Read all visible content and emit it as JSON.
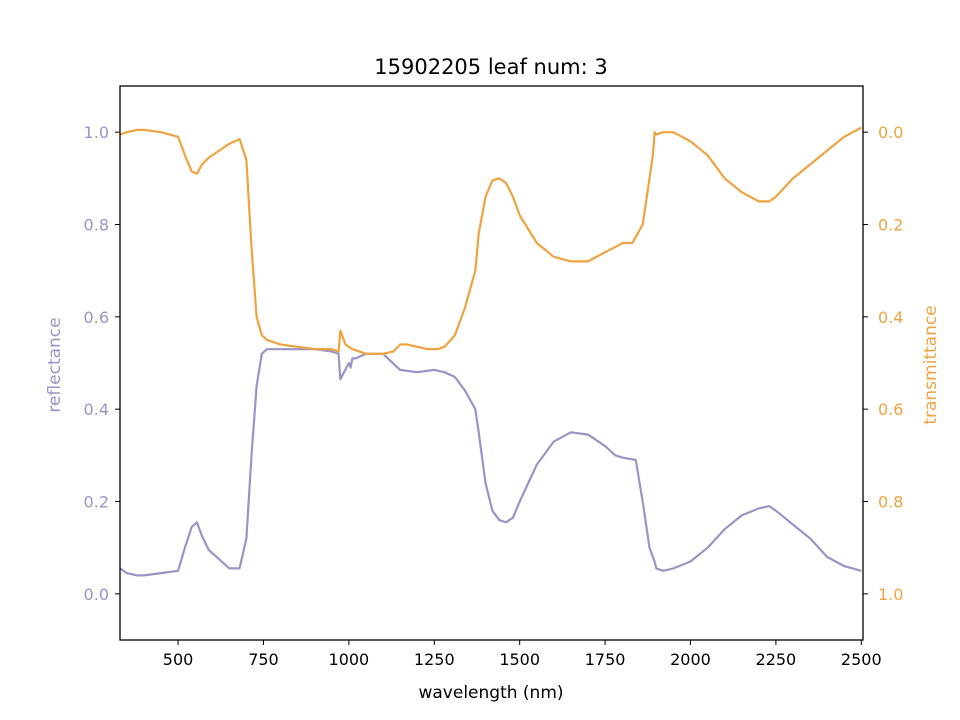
{
  "chart_data": {
    "type": "line",
    "title": "15902205 leaf num: 3",
    "xlabel": "wavelength (nm)",
    "ylabel": "reflectance",
    "y2label": "transmittance",
    "xlim": [
      330,
      2505
    ],
    "ylim": [
      -0.1,
      1.1
    ],
    "y2lim": [
      1.1,
      -0.1
    ],
    "y2_inverted": true,
    "xticks": [
      500,
      750,
      1000,
      1250,
      1500,
      1750,
      2000,
      2250,
      2500
    ],
    "xtick_labels": [
      "500",
      "750",
      "1000",
      "1250",
      "1500",
      "1750",
      "2000",
      "2250",
      "2500"
    ],
    "yticks": [
      0.0,
      0.2,
      0.4,
      0.6,
      0.8,
      1.0
    ],
    "ytick_labels": [
      "0.0",
      "0.2",
      "0.4",
      "0.6",
      "0.8",
      "1.0"
    ],
    "y2ticks": [
      0.0,
      0.2,
      0.4,
      0.6,
      0.8,
      1.0
    ],
    "y2tick_labels": [
      "0.0",
      "0.2",
      "0.4",
      "0.6",
      "0.8",
      "1.0"
    ],
    "grid": false,
    "colors": {
      "reflectance": "#9a94c4",
      "transmittance": "#eea340"
    },
    "series": [
      {
        "axis": "left",
        "x": [
          330,
          350,
          380,
          400,
          450,
          500,
          520,
          540,
          555,
          570,
          590,
          620,
          650,
          680,
          700,
          715,
          730,
          745,
          760,
          800,
          850,
          900,
          950,
          970,
          975,
          1000,
          1005,
          1010,
          1020,
          1050,
          1100,
          1150,
          1200,
          1250,
          1280,
          1310,
          1340,
          1370,
          1380,
          1400,
          1420,
          1440,
          1460,
          1480,
          1500,
          1550,
          1600,
          1650,
          1700,
          1750,
          1780,
          1800,
          1840,
          1860,
          1880,
          1890,
          1895,
          1900,
          1920,
          1950,
          2000,
          2050,
          2100,
          2150,
          2200,
          2230,
          2250,
          2300,
          2350,
          2400,
          2450,
          2500
        ],
        "y": [
          0.055,
          0.045,
          0.04,
          0.04,
          0.045,
          0.05,
          0.1,
          0.145,
          0.155,
          0.125,
          0.095,
          0.075,
          0.055,
          0.055,
          0.12,
          0.3,
          0.45,
          0.52,
          0.53,
          0.53,
          0.53,
          0.53,
          0.525,
          0.52,
          0.465,
          0.5,
          0.49,
          0.51,
          0.51,
          0.52,
          0.52,
          0.485,
          0.48,
          0.485,
          0.48,
          0.47,
          0.44,
          0.4,
          0.35,
          0.24,
          0.18,
          0.16,
          0.155,
          0.165,
          0.2,
          0.28,
          0.33,
          0.35,
          0.345,
          0.32,
          0.3,
          0.295,
          0.29,
          0.2,
          0.1,
          0.08,
          0.07,
          0.055,
          0.05,
          0.055,
          0.07,
          0.1,
          0.14,
          0.17,
          0.185,
          0.19,
          0.18,
          0.15,
          0.12,
          0.08,
          0.06,
          0.05
        ]
      },
      {
        "axis": "right",
        "x": [
          330,
          350,
          380,
          400,
          450,
          500,
          520,
          540,
          555,
          570,
          590,
          620,
          650,
          680,
          700,
          715,
          730,
          745,
          760,
          800,
          850,
          900,
          950,
          970,
          975,
          990,
          1000,
          1010,
          1050,
          1100,
          1130,
          1150,
          1170,
          1200,
          1230,
          1260,
          1280,
          1310,
          1340,
          1370,
          1380,
          1400,
          1420,
          1440,
          1460,
          1480,
          1500,
          1550,
          1600,
          1650,
          1700,
          1750,
          1790,
          1800,
          1830,
          1860,
          1880,
          1890,
          1895,
          1900,
          1920,
          1950,
          2000,
          2050,
          2100,
          2150,
          2200,
          2230,
          2250,
          2300,
          2350,
          2400,
          2450,
          2500
        ],
        "y": [
          0.005,
          0.0,
          -0.005,
          -0.005,
          0.0,
          0.01,
          0.05,
          0.085,
          0.09,
          0.07,
          0.055,
          0.04,
          0.025,
          0.015,
          0.06,
          0.25,
          0.4,
          0.44,
          0.45,
          0.46,
          0.465,
          0.47,
          0.47,
          0.475,
          0.43,
          0.46,
          0.465,
          0.47,
          0.48,
          0.48,
          0.475,
          0.46,
          0.46,
          0.465,
          0.47,
          0.47,
          0.465,
          0.44,
          0.38,
          0.3,
          0.22,
          0.14,
          0.105,
          0.1,
          0.11,
          0.14,
          0.18,
          0.24,
          0.27,
          0.28,
          0.28,
          0.26,
          0.245,
          0.24,
          0.24,
          0.2,
          0.1,
          0.05,
          0.0,
          0.005,
          0.0,
          0.0,
          0.02,
          0.05,
          0.1,
          0.13,
          0.15,
          0.15,
          0.14,
          0.1,
          0.07,
          0.04,
          0.01,
          -0.01
        ]
      }
    ]
  }
}
